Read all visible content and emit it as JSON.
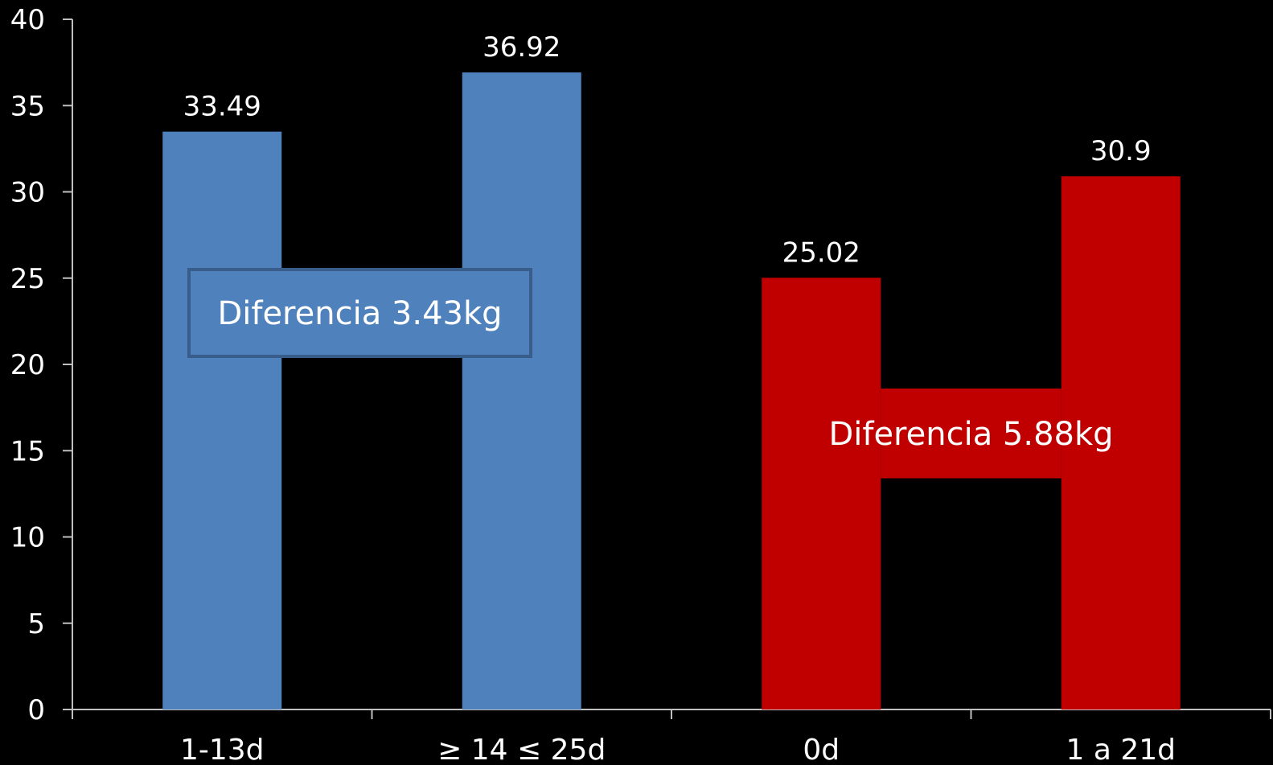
{
  "chart_data": {
    "type": "bar",
    "title": "",
    "xlabel": "",
    "ylabel": "",
    "ylim": [
      0,
      40
    ],
    "yticks": [
      0,
      5,
      10,
      15,
      20,
      25,
      30,
      35,
      40
    ],
    "grid": false,
    "categories": [
      "1-13d",
      "≥ 14 ≤ 25d",
      "0d",
      "1 a 21d"
    ],
    "values": [
      33.49,
      36.92,
      25.02,
      30.9
    ],
    "data_labels": [
      "33.49",
      "36.92",
      "25.02",
      "30.9"
    ],
    "bar_colors": [
      "#4f81bd",
      "#4f81bd",
      "#c00000",
      "#c00000"
    ],
    "annotations": [
      {
        "text": "Diferencia 3.43kg",
        "between": [
          0,
          1
        ],
        "style": "boxed",
        "color": "#4f81bd",
        "border": "#385d8a"
      },
      {
        "text": "Diferencia 5.88kg",
        "between": [
          2,
          3
        ],
        "style": "bridge",
        "color": "#c00000"
      }
    ]
  }
}
